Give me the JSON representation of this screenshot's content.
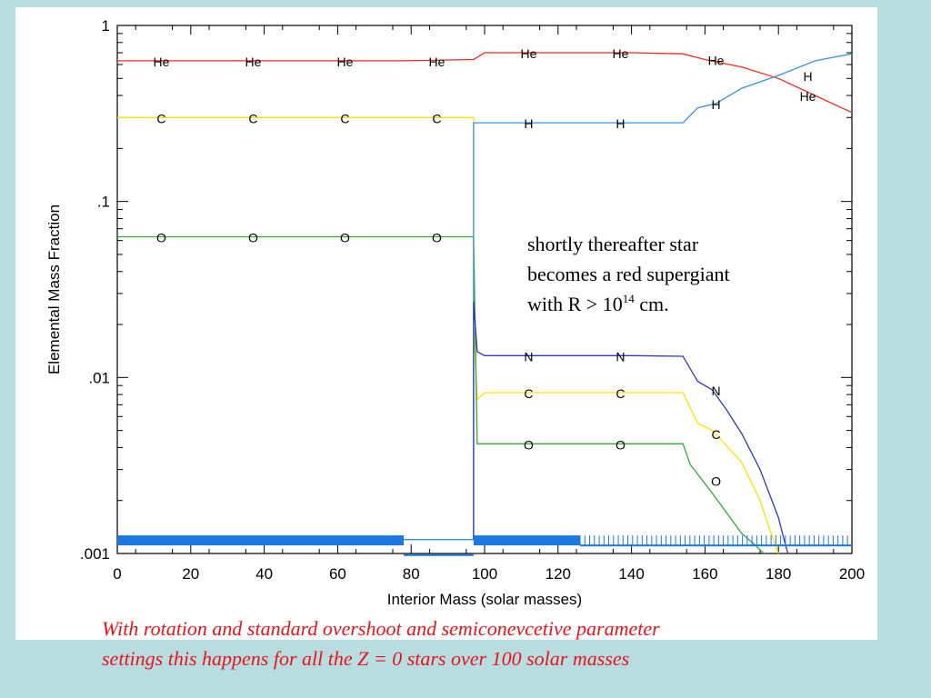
{
  "chart_data": {
    "type": "line",
    "title": "",
    "xlabel": "Interior Mass (solar masses)",
    "ylabel": "Elemental Mass Fraction",
    "xlim": [
      0,
      200
    ],
    "ylim": [
      0.001,
      1
    ],
    "y_scale": "log",
    "grid": false,
    "legend": "none",
    "x_ticks": [
      0,
      20,
      40,
      60,
      80,
      100,
      120,
      140,
      160,
      180,
      200
    ],
    "x_tick_labels": [
      "0",
      "20",
      "40",
      "60",
      "80",
      "100",
      "120",
      "140",
      "160",
      "180",
      "200"
    ],
    "y_ticks": [
      1,
      0.1,
      0.01,
      0.001
    ],
    "y_tick_labels": [
      "1",
      ".1",
      ".01",
      ".001"
    ],
    "series": [
      {
        "color": "#ea2b1f",
        "x": [
          0,
          78,
          97,
          100,
          126,
          140,
          154,
          160,
          170,
          180,
          190,
          200
        ],
        "y": [
          0.63,
          0.63,
          0.64,
          0.7,
          0.7,
          0.7,
          0.69,
          0.64,
          0.58,
          0.5,
          0.4,
          0.32
        ],
        "labels": [
          {
            "x": 12,
            "y": 0.63,
            "text": "He"
          },
          {
            "x": 37,
            "y": 0.63,
            "text": "He"
          },
          {
            "x": 62,
            "y": 0.63,
            "text": "He"
          },
          {
            "x": 87,
            "y": 0.63,
            "text": "He"
          },
          {
            "x": 112,
            "y": 0.7,
            "text": "He"
          },
          {
            "x": 137,
            "y": 0.7,
            "text": "He"
          },
          {
            "x": 163,
            "y": 0.64,
            "text": "He"
          },
          {
            "x": 188,
            "y": 0.4,
            "text": "He"
          }
        ]
      },
      {
        "color": "#ffe000",
        "x": [
          0,
          97,
          97,
          98,
          100,
          154,
          158,
          162,
          170,
          175,
          178,
          180,
          182
        ],
        "y": [
          0.3,
          0.3,
          0.02,
          0.0075,
          0.0082,
          0.0082,
          0.0055,
          0.005,
          0.0033,
          0.002,
          0.0013,
          0.001,
          0.0008
        ],
        "labels": [
          {
            "x": 12,
            "y": 0.3,
            "text": "C"
          },
          {
            "x": 37,
            "y": 0.3,
            "text": "C"
          },
          {
            "x": 62,
            "y": 0.3,
            "text": "C"
          },
          {
            "x": 87,
            "y": 0.3,
            "text": "C"
          },
          {
            "x": 112,
            "y": 0.0082,
            "text": "C"
          },
          {
            "x": 137,
            "y": 0.0082,
            "text": "C"
          },
          {
            "x": 163,
            "y": 0.0048,
            "text": "C"
          }
        ]
      },
      {
        "color": "#3aa93a",
        "x": [
          0,
          97,
          98,
          100,
          154,
          156,
          162,
          170,
          174,
          176,
          178
        ],
        "y": [
          0.063,
          0.063,
          0.0042,
          0.0042,
          0.0042,
          0.0032,
          0.0022,
          0.0013,
          0.0011,
          0.001,
          0.0008
        ],
        "labels": [
          {
            "x": 12,
            "y": 0.063,
            "text": "O"
          },
          {
            "x": 37,
            "y": 0.063,
            "text": "O"
          },
          {
            "x": 62,
            "y": 0.063,
            "text": "O"
          },
          {
            "x": 87,
            "y": 0.063,
            "text": "O"
          },
          {
            "x": 112,
            "y": 0.0042,
            "text": "O"
          },
          {
            "x": 137,
            "y": 0.0042,
            "text": "O"
          },
          {
            "x": 163,
            "y": 0.0026,
            "text": "O"
          }
        ]
      },
      {
        "color": "#3a8fe0",
        "x": [
          0,
          78,
          97,
          97,
          100,
          154,
          158,
          163,
          170,
          180,
          190,
          200
        ],
        "y": [
          0.0012,
          0.0012,
          0.0012,
          0.28,
          0.28,
          0.28,
          0.34,
          0.36,
          0.44,
          0.52,
          0.63,
          0.69
        ],
        "labels": [
          {
            "x": 112,
            "y": 0.28,
            "text": "H"
          },
          {
            "x": 137,
            "y": 0.28,
            "text": "H"
          },
          {
            "x": 163,
            "y": 0.36,
            "text": "H"
          },
          {
            "x": 188,
            "y": 0.52,
            "text": "H"
          }
        ]
      },
      {
        "color": "#2c3bb5",
        "x": [
          97,
          97,
          98,
          100,
          126,
          140,
          154,
          158,
          162,
          166,
          170,
          175,
          180,
          182,
          184
        ],
        "y": [
          0.0012,
          0.027,
          0.014,
          0.0133,
          0.0133,
          0.0133,
          0.0132,
          0.0095,
          0.0085,
          0.0065,
          0.0048,
          0.003,
          0.0016,
          0.0011,
          0.0008
        ],
        "labels": [
          {
            "x": 112,
            "y": 0.0133,
            "text": "N"
          },
          {
            "x": 137,
            "y": 0.0133,
            "text": "N"
          },
          {
            "x": 163,
            "y": 0.0085,
            "text": "N"
          }
        ]
      }
    ],
    "annotations": [
      {
        "text": "shortly thereafter star"
      },
      {
        "text": "becomes a red supergiant"
      },
      {
        "text": "with R > 10",
        "superscript": "14",
        "suffix": " cm."
      }
    ]
  },
  "caption": {
    "line1": "With rotation and standard overshoot and semiconevcetive parameter",
    "line2": "settings this happens for all the Z = 0 stars over 100 solar masses"
  }
}
